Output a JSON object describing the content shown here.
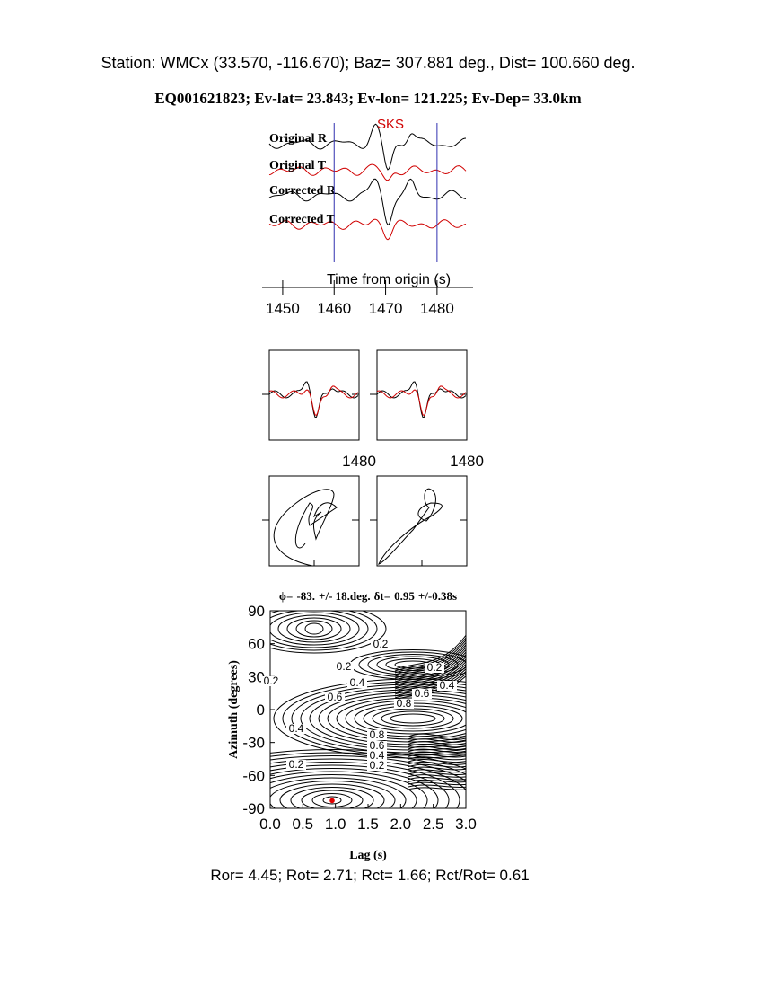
{
  "header": {
    "station": "Station: WMCx (33.570, -116.670); Baz=  307.881 deg., Dist=  100.660 deg.",
    "event": "EQ001621823; Ev-lat=  23.843; Ev-lon= 121.225; Ev-Dep= 33.0km"
  },
  "chart_data": [
    {
      "type": "waveform",
      "phase": "SKS",
      "traces": [
        "Original R",
        "Original T",
        "Corrected R",
        "Corrected T"
      ],
      "trace_colors": [
        "#000000",
        "#d00000",
        "#000000",
        "#d00000"
      ],
      "xlabel": "Time from origin (s)",
      "xlim": [
        1446,
        1487
      ],
      "xticks": [
        1450,
        1460,
        1470,
        1480
      ],
      "window": [
        1460,
        1480
      ],
      "window_color": "#3030b0"
    },
    {
      "type": "panels",
      "xticks": [
        1480,
        1480
      ]
    },
    {
      "type": "contour",
      "title": {
        "phi_label": "ϕ=",
        "phi": {
          "value": -83,
          "label": "-83."
        },
        "phi_err": "+/- 18.deg.",
        "dt_label": "δt=",
        "dt": 0.95,
        "dt_err": "+/-0.38s"
      },
      "xlabel": "Lag (s)",
      "ylabel": "Azimuth (degrees)",
      "xlim": [
        0,
        3
      ],
      "ylim": [
        -90,
        90
      ],
      "xticks": [
        {
          "value": 0,
          "label": "0.0"
        },
        0.5,
        {
          "value": 1,
          "label": "1.0"
        },
        1.5,
        {
          "value": 2,
          "label": "2.0"
        },
        2.5,
        {
          "value": 3,
          "label": "3.0"
        }
      ],
      "yticks": [
        90,
        60,
        30,
        0,
        -30,
        -60,
        -90
      ],
      "contour_labels": [
        0.2,
        0.2,
        0.2,
        0.4,
        0.4,
        0.6,
        0.6,
        0.8,
        0.4,
        0.8,
        0.6,
        0.4,
        0.2,
        0.2,
        0.2
      ],
      "marker_color": "#e00000"
    }
  ],
  "footer": "Ror= 4.45; Rot= 2.71; Rct= 1.66; Rct/Rot= 0.61"
}
